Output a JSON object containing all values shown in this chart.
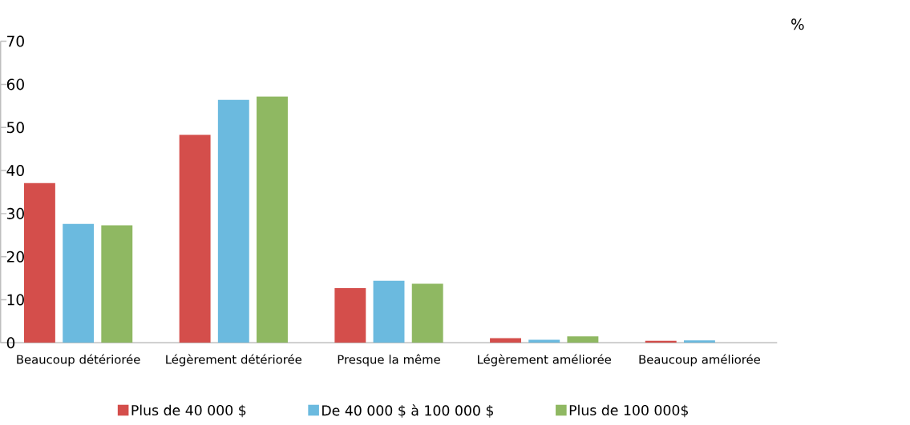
{
  "chart_data": {
    "type": "bar",
    "ylabel": "%",
    "categories": [
      "Beaucoup détériorée",
      "Légèrement détériorée",
      "Presque la même",
      "Légèrement améliorée",
      "Beaucoup améliorée"
    ],
    "series": [
      {
        "name": "Plus de 40 000 $",
        "color": "#d44e4b",
        "values": [
          37.1,
          48.3,
          12.7,
          1.1,
          0.5
        ]
      },
      {
        "name": "De 40 000 $ à 100 000 $",
        "color": "#6bbadf",
        "values": [
          27.6,
          56.4,
          14.4,
          0.7,
          0.6
        ]
      },
      {
        "name": "Plus de 100 000$",
        "color": "#8fb862",
        "values": [
          27.3,
          57.2,
          13.7,
          1.5,
          0
        ]
      }
    ],
    "ylim": [
      0,
      70
    ],
    "yticks": [
      0,
      10,
      20,
      30,
      40,
      50,
      60,
      70
    ],
    "grid": false,
    "legend": "bottom"
  }
}
